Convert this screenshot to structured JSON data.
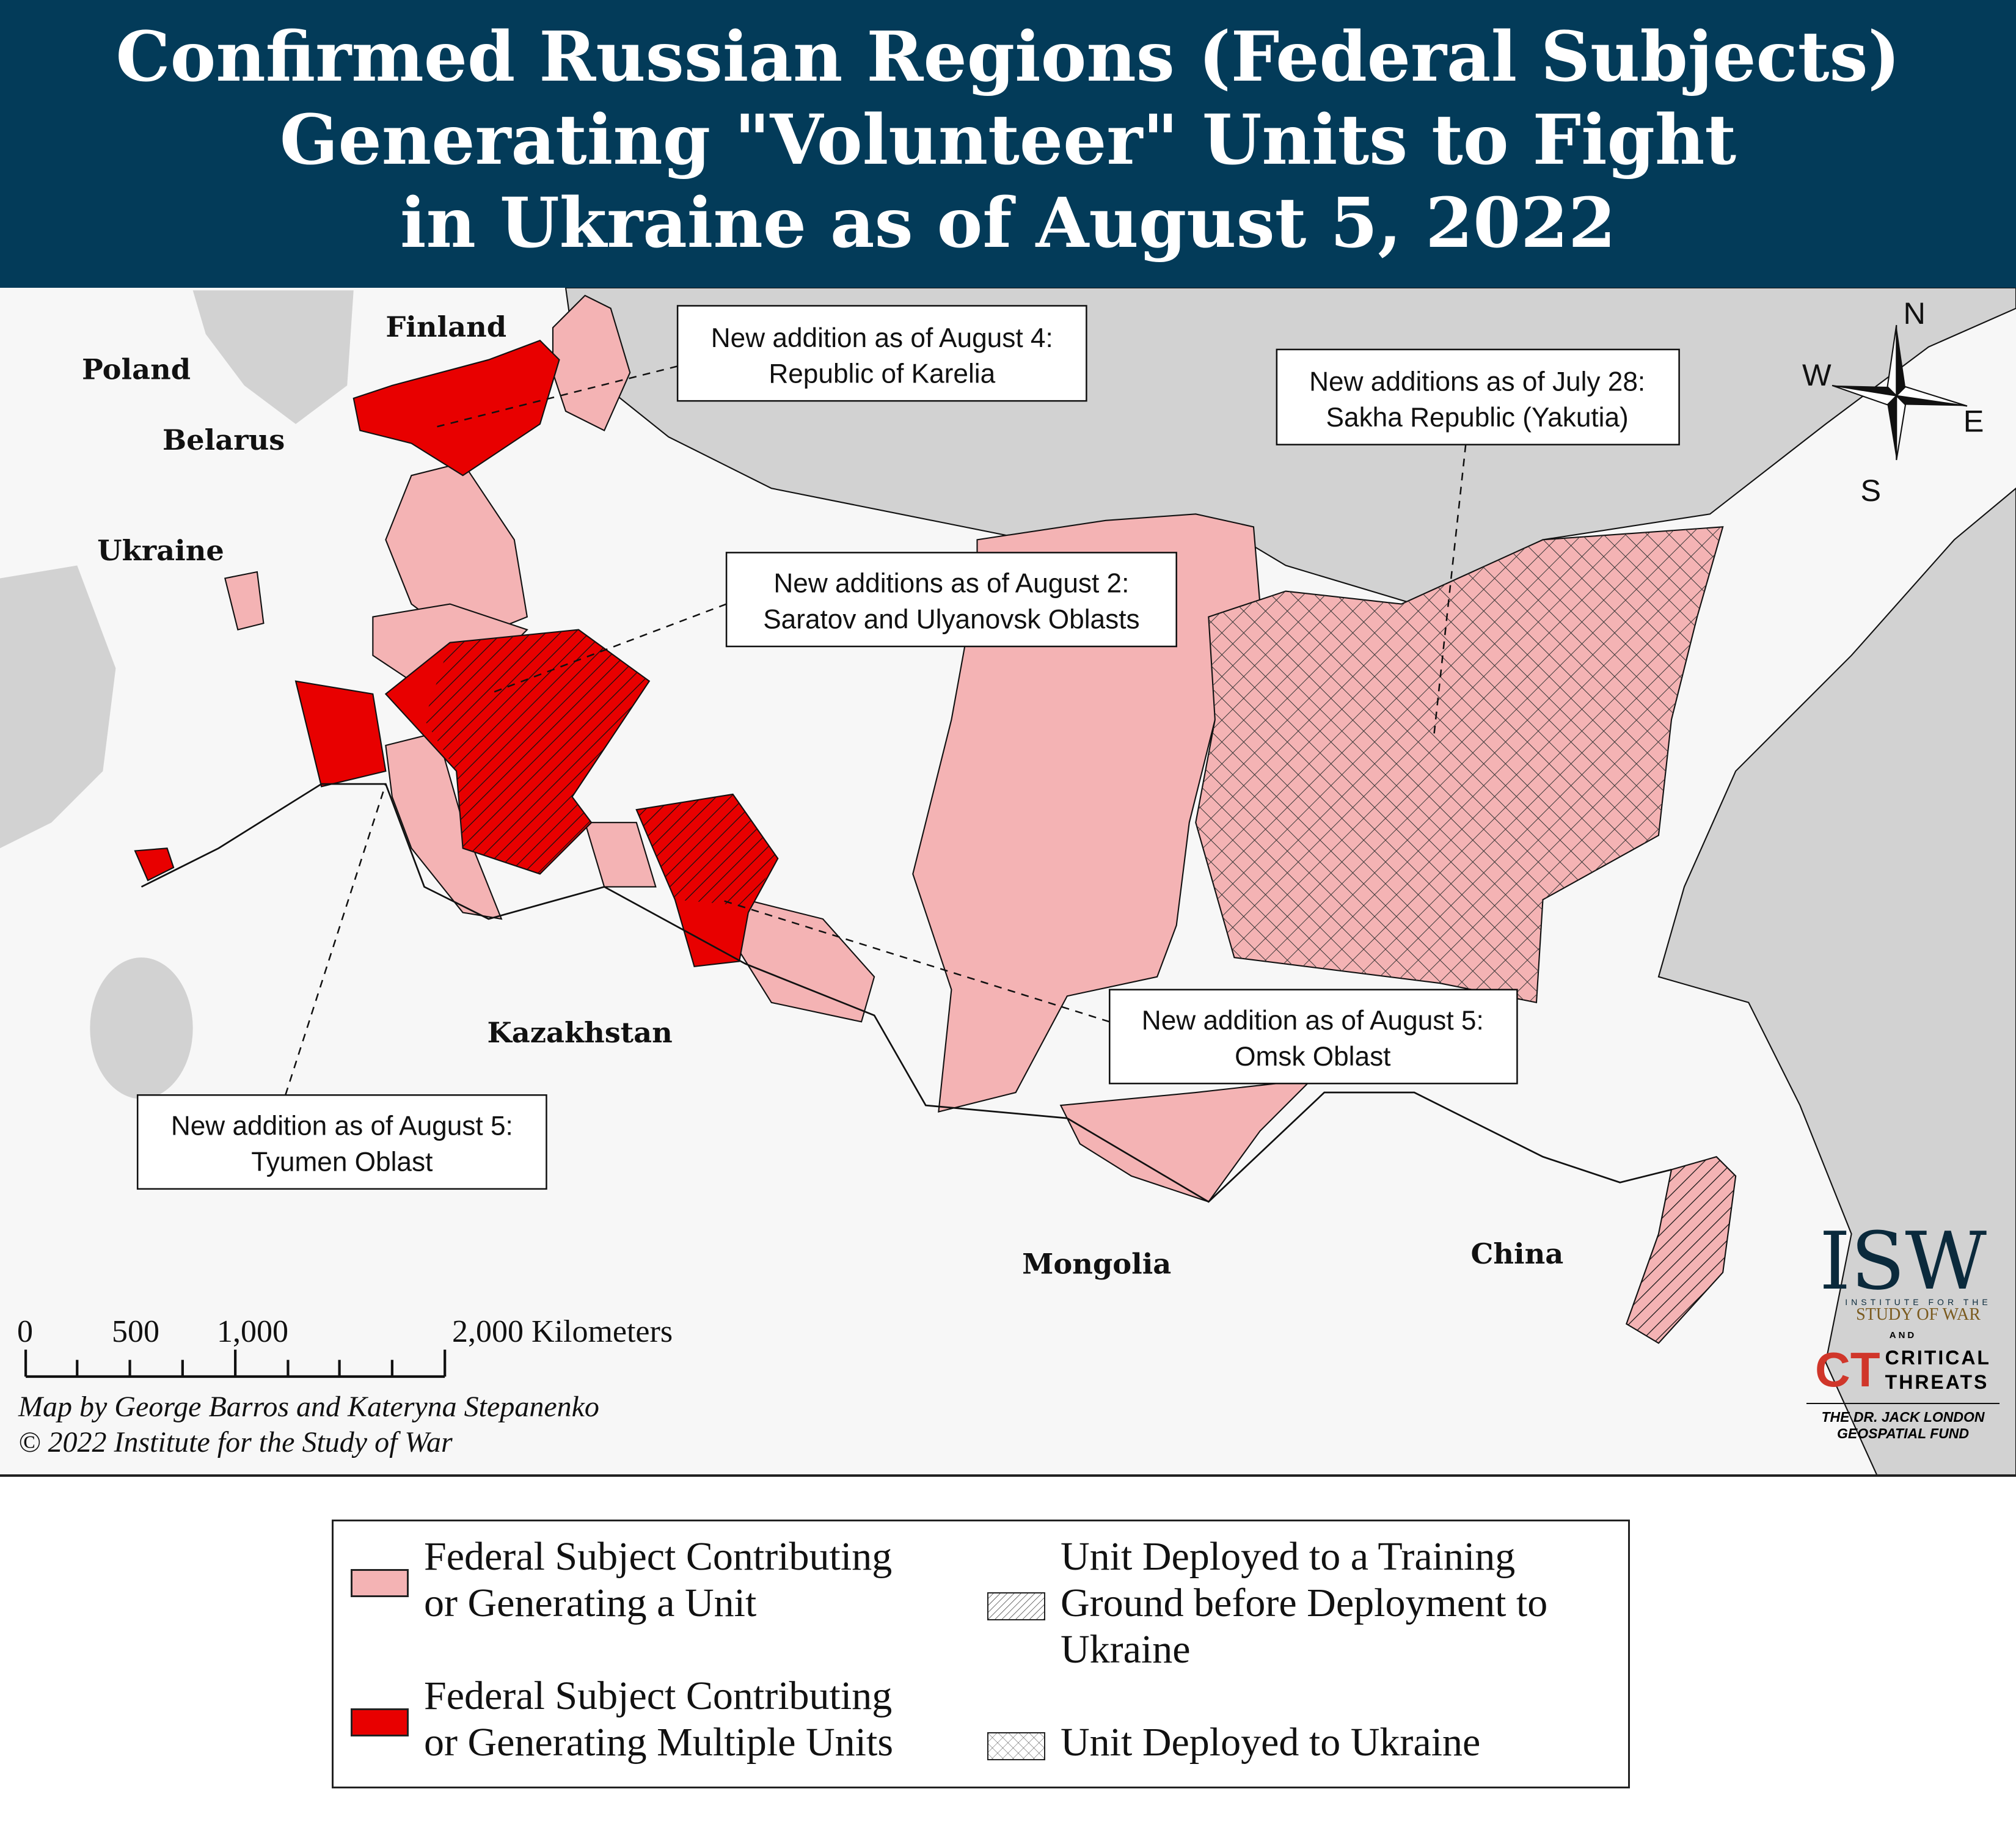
{
  "header": {
    "title_lines": [
      "Confirmed Russian Regions (Federal Subjects)",
      "Generating \"Volunteer\" Units to Fight",
      "in Ukraine as of August 5, 2022"
    ]
  },
  "colors": {
    "header_bg": "#033b59",
    "contributing_single": "#f4b3b4",
    "contributing_multiple": "#e80000",
    "sea": "#d2d2d2",
    "land": "#f7f7f7"
  },
  "map": {
    "country_labels": [
      "Finland",
      "Poland",
      "Belarus",
      "Ukraine",
      "Kazakhstan",
      "Mongolia",
      "China"
    ],
    "callouts": [
      {
        "line1": "New addition as of August 4:",
        "line2": "Republic of Karelia"
      },
      {
        "line1": "New additions as of July 28:",
        "line2": "Sakha Republic (Yakutia)"
      },
      {
        "line1": "New additions as of August 2:",
        "line2": "Saratov and Ulyanovsk Oblasts"
      },
      {
        "line1": "New addition as of August 5:",
        "line2": "Omsk Oblast"
      },
      {
        "line1": "New addition as of August 5:",
        "line2": "Tyumen Oblast"
      }
    ],
    "compass": {
      "n": "N",
      "s": "S",
      "e": "E",
      "w": "W"
    },
    "scale_bar": {
      "labels": [
        "0",
        "500",
        "1,000",
        "2,000 Kilometers"
      ]
    },
    "credits": [
      "Map by George Barros and Kateryna Stepanenko",
      "© 2022 Institute for the Study of War"
    ]
  },
  "logo": {
    "isw": "ISW",
    "isw_sub1": "INSTITUTE FOR THE",
    "isw_sub2": "STUDY OF WAR",
    "and": "AND",
    "ct": "CT",
    "ct_line1": "CRITICAL",
    "ct_line2": "THREATS",
    "fund_line1": "THE DR. JACK LONDON",
    "fund_line2": "GEOSPATIAL FUND"
  },
  "legend": {
    "items": [
      {
        "line1": "Federal Subject Contributing",
        "line2": "or Generating a Unit",
        "swatch": "pink"
      },
      {
        "line1": "Federal Subject Contributing",
        "line2": "or Generating Multiple Units",
        "swatch": "red"
      },
      {
        "line1": "Unit Deployed to a Training",
        "line2": "Ground before Deployment to",
        "line3": "Ukraine",
        "swatch": "diagonal-hatch"
      },
      {
        "line1": "Unit Deployed to Ukraine",
        "swatch": "cross-hatch"
      }
    ]
  }
}
